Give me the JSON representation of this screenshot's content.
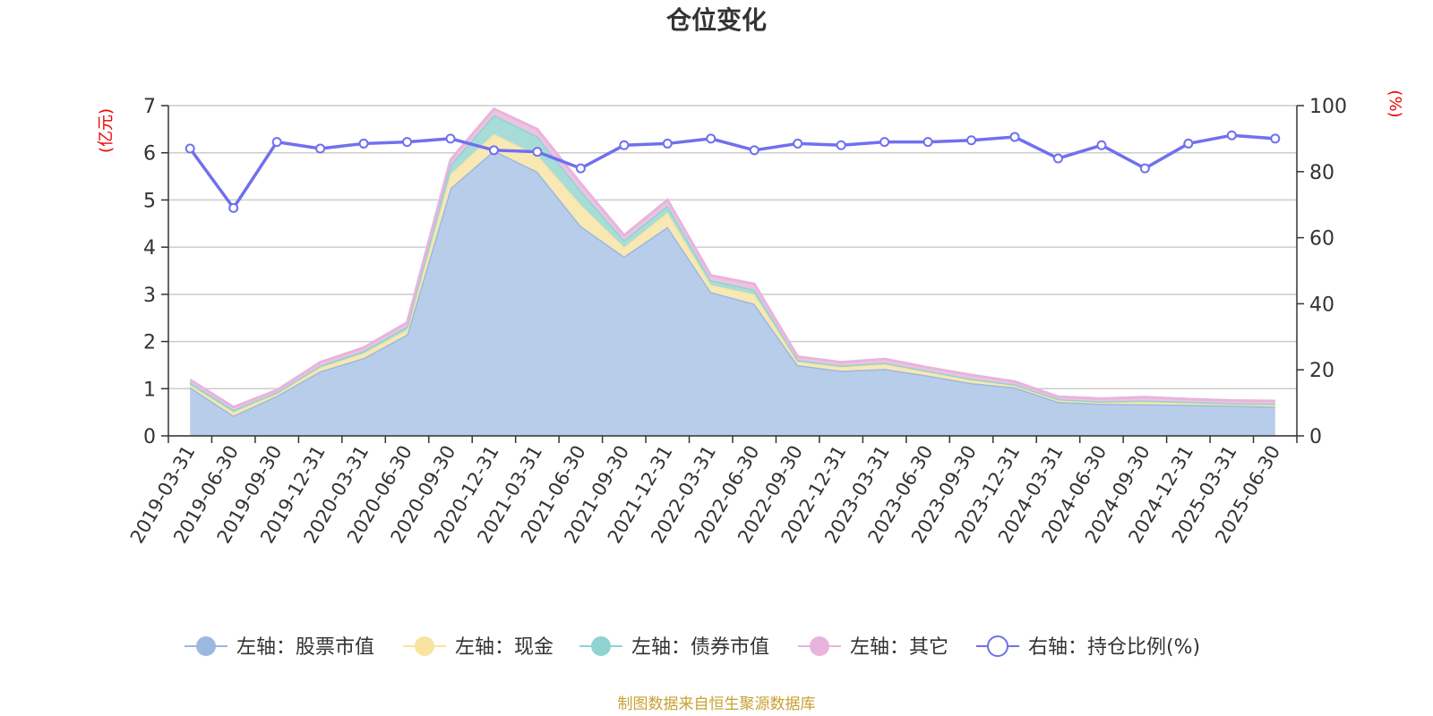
{
  "chart_data": {
    "type": "area",
    "title": "仓位变化",
    "left_axis_unit": "(亿元)",
    "right_axis_unit": "(%)",
    "left_ylim": [
      0,
      7
    ],
    "left_ticks": [
      0,
      1,
      2,
      3,
      4,
      5,
      6,
      7
    ],
    "right_ylim": [
      0,
      100
    ],
    "right_ticks": [
      0,
      20,
      40,
      60,
      80,
      100
    ],
    "grid": true,
    "legend_position": "bottom",
    "categories": [
      "2019-03-31",
      "2019-06-30",
      "2019-09-30",
      "2019-12-31",
      "2020-03-31",
      "2020-06-30",
      "2020-09-30",
      "2020-12-31",
      "2021-03-31",
      "2021-06-30",
      "2021-09-30",
      "2021-12-31",
      "2022-03-31",
      "2022-06-30",
      "2022-09-30",
      "2022-12-31",
      "2023-03-31",
      "2023-06-30",
      "2023-09-30",
      "2023-12-31",
      "2024-03-31",
      "2024-06-30",
      "2024-09-30",
      "2024-12-31",
      "2025-03-31",
      "2025-06-30"
    ],
    "stacked_series": [
      {
        "name": "左轴：股票市值",
        "color": "#9db8e0",
        "fill": "#b8cdea",
        "values": [
          1.03,
          0.43,
          0.85,
          1.37,
          1.65,
          2.15,
          5.25,
          6.05,
          5.6,
          4.45,
          3.8,
          4.43,
          3.05,
          2.8,
          1.5,
          1.38,
          1.42,
          1.28,
          1.12,
          1.03,
          0.72,
          0.68,
          0.67,
          0.66,
          0.64,
          0.62
        ]
      },
      {
        "name": "左轴：现金",
        "color": "#f8e4a0",
        "fill": "#f8e8b4",
        "values": [
          0.05,
          0.07,
          0.05,
          0.08,
          0.1,
          0.1,
          0.3,
          0.35,
          0.35,
          0.45,
          0.2,
          0.3,
          0.15,
          0.2,
          0.07,
          0.08,
          0.1,
          0.07,
          0.06,
          0.04,
          0.04,
          0.03,
          0.06,
          0.04,
          0.03,
          0.04
        ]
      },
      {
        "name": "左轴：债券市值",
        "color": "#8fd3d3",
        "fill": "#a8dcd8",
        "values": [
          0.05,
          0.05,
          0.02,
          0.04,
          0.05,
          0.07,
          0.2,
          0.4,
          0.4,
          0.3,
          0.15,
          0.15,
          0.1,
          0.1,
          0.04,
          0.03,
          0.03,
          0.03,
          0.03,
          0.02,
          0.02,
          0.02,
          0.02,
          0.02,
          0.02,
          0.02
        ]
      },
      {
        "name": "左轴：其它",
        "color": "#e8b4dc",
        "fill": "#ecc4e0",
        "values": [
          0.06,
          0.06,
          0.05,
          0.07,
          0.07,
          0.08,
          0.1,
          0.13,
          0.15,
          0.15,
          0.1,
          0.12,
          0.1,
          0.12,
          0.07,
          0.07,
          0.08,
          0.07,
          0.08,
          0.06,
          0.05,
          0.06,
          0.07,
          0.06,
          0.06,
          0.06
        ]
      }
    ],
    "line_series": {
      "name": "右轴：持仓比例(%)",
      "color": "#7070ee",
      "values": [
        87,
        69,
        89,
        87,
        88.5,
        89,
        90,
        86.5,
        86,
        81,
        88,
        88.5,
        90,
        86.5,
        88.5,
        88,
        89,
        89,
        89.5,
        90.5,
        84,
        88,
        81,
        88.5,
        91,
        90
      ]
    },
    "source": "制图数据来自恒生聚源数据库"
  }
}
